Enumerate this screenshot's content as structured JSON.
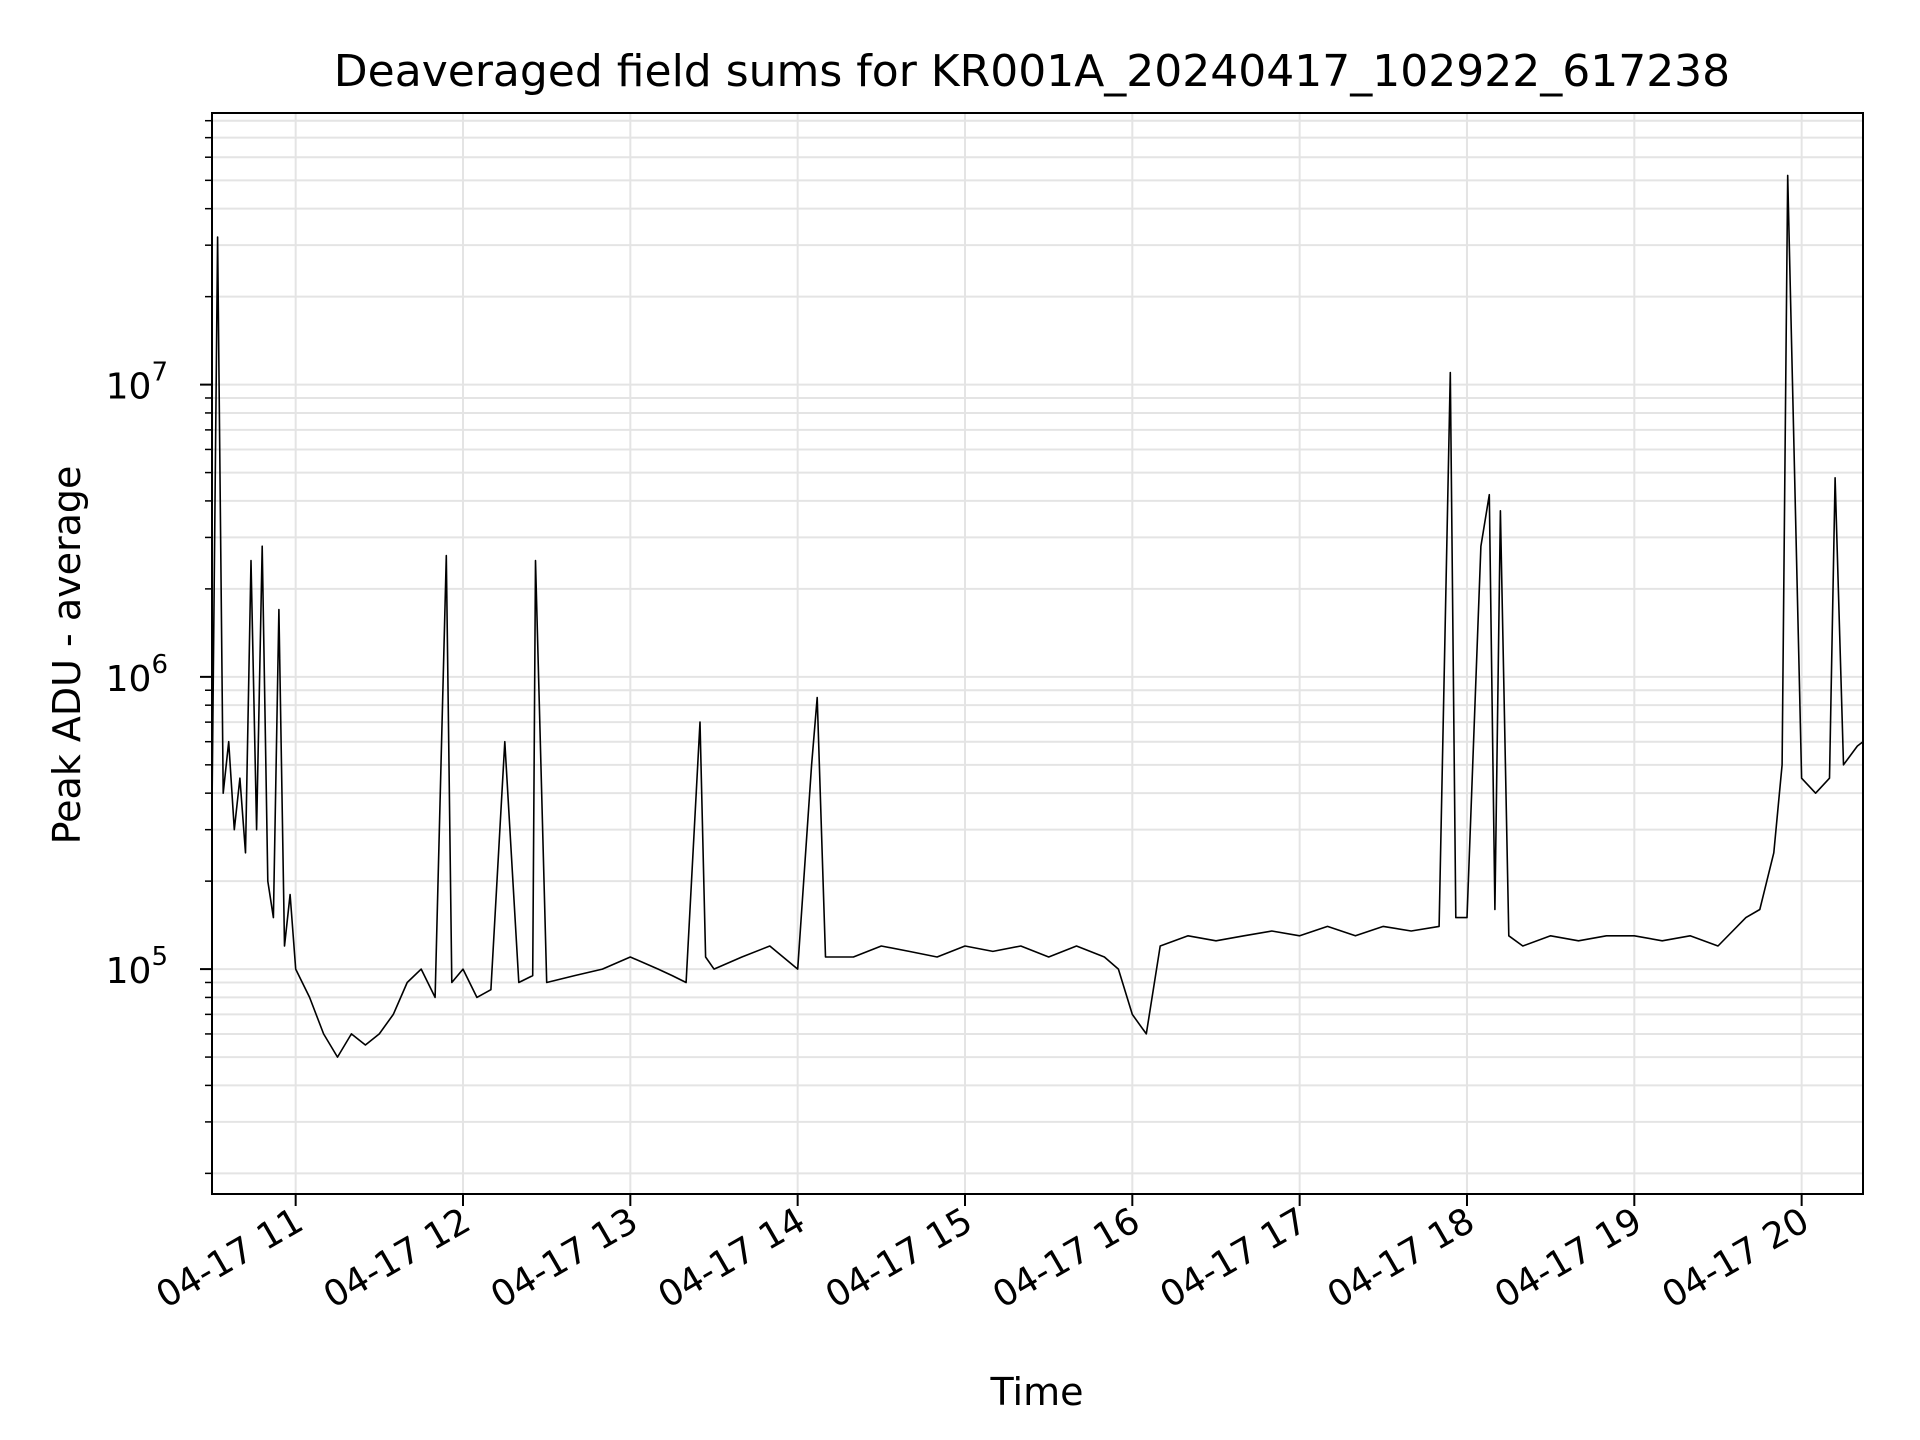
{
  "chart_data": {
    "type": "line",
    "title": "Deaveraged field sums for KR001A_20240417_102922_617238",
    "xlabel": "Time",
    "ylabel": "Peak ADU - average",
    "yscale": "log",
    "grid": true,
    "xlim": [
      "2024-04-17 10:30",
      "2024-04-17 20:22"
    ],
    "ylim": [
      17000,
      85000000
    ],
    "x_ticks": [
      {
        "label": "04-17 11",
        "time": "2024-04-17 11:00"
      },
      {
        "label": "04-17 12",
        "time": "2024-04-17 12:00"
      },
      {
        "label": "04-17 13",
        "time": "2024-04-17 13:00"
      },
      {
        "label": "04-17 14",
        "time": "2024-04-17 14:00"
      },
      {
        "label": "04-17 15",
        "time": "2024-04-17 15:00"
      },
      {
        "label": "04-17 16",
        "time": "2024-04-17 16:00"
      },
      {
        "label": "04-17 17",
        "time": "2024-04-17 17:00"
      },
      {
        "label": "04-17 18",
        "time": "2024-04-17 18:00"
      },
      {
        "label": "04-17 19",
        "time": "2024-04-17 19:00"
      },
      {
        "label": "04-17 20",
        "time": "2024-04-17 20:00"
      }
    ],
    "y_ticks": [
      {
        "base": "10",
        "exp": "5",
        "value": 100000
      },
      {
        "base": "10",
        "exp": "6",
        "value": 1000000
      },
      {
        "base": "10",
        "exp": "7",
        "value": 10000000
      }
    ],
    "series": [
      {
        "color": "#000000",
        "x": [
          "2024-04-17 10:30",
          "2024-04-17 10:32",
          "2024-04-17 10:34",
          "2024-04-17 10:36",
          "2024-04-17 10:38",
          "2024-04-17 10:40",
          "2024-04-17 10:42",
          "2024-04-17 10:44",
          "2024-04-17 10:46",
          "2024-04-17 10:48",
          "2024-04-17 10:50",
          "2024-04-17 10:52",
          "2024-04-17 10:54",
          "2024-04-17 10:56",
          "2024-04-17 10:58",
          "2024-04-17 11:00",
          "2024-04-17 11:05",
          "2024-04-17 11:10",
          "2024-04-17 11:15",
          "2024-04-17 11:20",
          "2024-04-17 11:25",
          "2024-04-17 11:30",
          "2024-04-17 11:35",
          "2024-04-17 11:40",
          "2024-04-17 11:45",
          "2024-04-17 11:50",
          "2024-04-17 11:54",
          "2024-04-17 11:56",
          "2024-04-17 12:00",
          "2024-04-17 12:05",
          "2024-04-17 12:10",
          "2024-04-17 12:15",
          "2024-04-17 12:20",
          "2024-04-17 12:25",
          "2024-04-17 12:26",
          "2024-04-17 12:30",
          "2024-04-17 12:40",
          "2024-04-17 12:50",
          "2024-04-17 13:00",
          "2024-04-17 13:10",
          "2024-04-17 13:15",
          "2024-04-17 13:20",
          "2024-04-17 13:25",
          "2024-04-17 13:27",
          "2024-04-17 13:30",
          "2024-04-17 13:40",
          "2024-04-17 13:50",
          "2024-04-17 14:00",
          "2024-04-17 14:05",
          "2024-04-17 14:07",
          "2024-04-17 14:10",
          "2024-04-17 14:20",
          "2024-04-17 14:30",
          "2024-04-17 14:40",
          "2024-04-17 14:50",
          "2024-04-17 15:00",
          "2024-04-17 15:10",
          "2024-04-17 15:20",
          "2024-04-17 15:30",
          "2024-04-17 15:40",
          "2024-04-17 15:50",
          "2024-04-17 15:55",
          "2024-04-17 16:00",
          "2024-04-17 16:05",
          "2024-04-17 16:10",
          "2024-04-17 16:20",
          "2024-04-17 16:30",
          "2024-04-17 16:40",
          "2024-04-17 16:50",
          "2024-04-17 17:00",
          "2024-04-17 17:10",
          "2024-04-17 17:20",
          "2024-04-17 17:30",
          "2024-04-17 17:40",
          "2024-04-17 17:50",
          "2024-04-17 17:54",
          "2024-04-17 17:56",
          "2024-04-17 18:00",
          "2024-04-17 18:05",
          "2024-04-17 18:08",
          "2024-04-17 18:10",
          "2024-04-17 18:12",
          "2024-04-17 18:15",
          "2024-04-17 18:20",
          "2024-04-17 18:30",
          "2024-04-17 18:40",
          "2024-04-17 18:50",
          "2024-04-17 19:00",
          "2024-04-17 19:10",
          "2024-04-17 19:20",
          "2024-04-17 19:30",
          "2024-04-17 19:40",
          "2024-04-17 19:45",
          "2024-04-17 19:50",
          "2024-04-17 19:53",
          "2024-04-17 19:55",
          "2024-04-17 20:00",
          "2024-04-17 20:05",
          "2024-04-17 20:10",
          "2024-04-17 20:12",
          "2024-04-17 20:15",
          "2024-04-17 20:20",
          "2024-04-17 20:22"
        ],
        "y": [
          350000,
          32000000,
          400000,
          600000,
          300000,
          450000,
          250000,
          2500000,
          300000,
          2800000,
          200000,
          150000,
          1700000,
          120000,
          180000,
          100000,
          80000,
          60000,
          50000,
          60000,
          55000,
          60000,
          70000,
          90000,
          100000,
          80000,
          2600000,
          90000,
          100000,
          80000,
          85000,
          600000,
          90000,
          95000,
          2500000,
          90000,
          95000,
          100000,
          110000,
          100000,
          95000,
          90000,
          700000,
          110000,
          100000,
          110000,
          120000,
          100000,
          500000,
          850000,
          110000,
          110000,
          120000,
          115000,
          110000,
          120000,
          115000,
          120000,
          110000,
          120000,
          110000,
          100000,
          70000,
          60000,
          120000,
          130000,
          125000,
          130000,
          135000,
          130000,
          140000,
          130000,
          140000,
          135000,
          140000,
          11000000,
          150000,
          150000,
          2800000,
          4200000,
          160000,
          3700000,
          130000,
          120000,
          130000,
          125000,
          130000,
          130000,
          125000,
          130000,
          120000,
          150000,
          160000,
          250000,
          500000,
          52000000,
          450000,
          400000,
          450000,
          4800000,
          500000,
          580000,
          600000
        ]
      }
    ]
  }
}
